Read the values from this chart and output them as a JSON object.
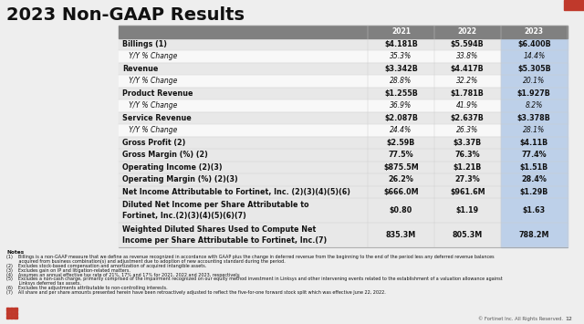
{
  "title": "2023 Non-GAAP Results",
  "title_fontsize": 14,
  "bg_color": "#eeeeee",
  "header_row": [
    "",
    "2021",
    "2022",
    "2023"
  ],
  "header_bg": "#808080",
  "header_fg": "#ffffff",
  "col2023_bg": "#bdd0e9",
  "rows": [
    {
      "label": "Billings (1)",
      "v2021": "$4.181B",
      "v2022": "$5.594B",
      "v2023": "$6.400B",
      "bold": true,
      "italic": false
    },
    {
      "label": "   Y/Y % Change",
      "v2021": "35.3%",
      "v2022": "33.8%",
      "v2023": "14.4%",
      "bold": false,
      "italic": true
    },
    {
      "label": "Revenue",
      "v2021": "$3.342B",
      "v2022": "$4.417B",
      "v2023": "$5.305B",
      "bold": true,
      "italic": false
    },
    {
      "label": "   Y/Y % Change",
      "v2021": "28.8%",
      "v2022": "32.2%",
      "v2023": "20.1%",
      "bold": false,
      "italic": true
    },
    {
      "label": "Product Revenue",
      "v2021": "$1.255B",
      "v2022": "$1.781B",
      "v2023": "$1.927B",
      "bold": true,
      "italic": false
    },
    {
      "label": "   Y/Y % Change",
      "v2021": "36.9%",
      "v2022": "41.9%",
      "v2023": "8.2%",
      "bold": false,
      "italic": true
    },
    {
      "label": "Service Revenue",
      "v2021": "$2.087B",
      "v2022": "$2.637B",
      "v2023": "$3.378B",
      "bold": true,
      "italic": false
    },
    {
      "label": "   Y/Y % Change",
      "v2021": "24.4%",
      "v2022": "26.3%",
      "v2023": "28.1%",
      "bold": false,
      "italic": true
    },
    {
      "label": "Gross Profit (2)",
      "v2021": "$2.59B",
      "v2022": "$3.37B",
      "v2023": "$4.11B",
      "bold": true,
      "italic": false
    },
    {
      "label": "Gross Margin (%) (2)",
      "v2021": "77.5%",
      "v2022": "76.3%",
      "v2023": "77.4%",
      "bold": true,
      "italic": false
    },
    {
      "label": "Operating Income (2)(3)",
      "v2021": "$875.5M",
      "v2022": "$1.21B",
      "v2023": "$1.51B",
      "bold": true,
      "italic": false
    },
    {
      "label": "Operating Margin (%) (2)(3)",
      "v2021": "26.2%",
      "v2022": "27.3%",
      "v2023": "28.4%",
      "bold": true,
      "italic": false
    },
    {
      "label": "Net Income Attributable to Fortinet, Inc. (2)(3)(4)(5)(6)",
      "v2021": "$666.0M",
      "v2022": "$961.6M",
      "v2023": "$1.29B",
      "bold": true,
      "italic": false
    },
    {
      "label": "Diluted Net Income per Share Attributable to\nFortinet, Inc.(2)(3)(4)(5)(6)(7)",
      "v2021": "$0.80",
      "v2022": "$1.19",
      "v2023": "$1.63",
      "bold": true,
      "italic": false
    },
    {
      "label": "Weighted Diluted Shares Used to Compute Net\nIncome per Share Attributable to Fortinet, Inc.(7)",
      "v2021": "835.3M",
      "v2022": "805.3M",
      "v2023": "788.2M",
      "bold": true,
      "italic": false
    }
  ],
  "notes_title": "Notes",
  "notes": [
    "(1)    Billings is a non-GAAP measure that we define as revenue recognized in accordance with GAAP plus the change in deferred revenue from the beginning to the end of the period less any deferred revenue balances\n         acquired from business combination(s) and adjustment due to adoption of new accounting standard during the period.",
    "(2)    Excludes stock-based compensation and amortization of acquired intangible assets.",
    "(3)    Excludes gain on IP and litigation-related matters.",
    "(4)    Assumes an annual effective tax rate of 21%, 17% and 17% for 2021, 2022 and 2023, respectively.",
    "(5)    Excludes a non-cash charge, primarily comprised of the impairment recognized on our equity method investment in Linksys and other intervening events related to the establishment of a valuation allowance against\n         Linksys deferred tax assets.",
    "(6)    Excludes the adjustments attributable to non-controlling interests.",
    "(7)    All share and per share amounts presented herein have been retroactively adjusted to reflect the five-for-one forward stock split which was effective June 22, 2022."
  ],
  "footer_text": "© Fortinet Inc. All Rights Reserved.",
  "footer_num": "12",
  "red_corner_color": "#c0392b",
  "logo_color": "#c0392b",
  "row_bg_bold": "#e8e8e8",
  "row_bg_normal": "#f8f8f8"
}
